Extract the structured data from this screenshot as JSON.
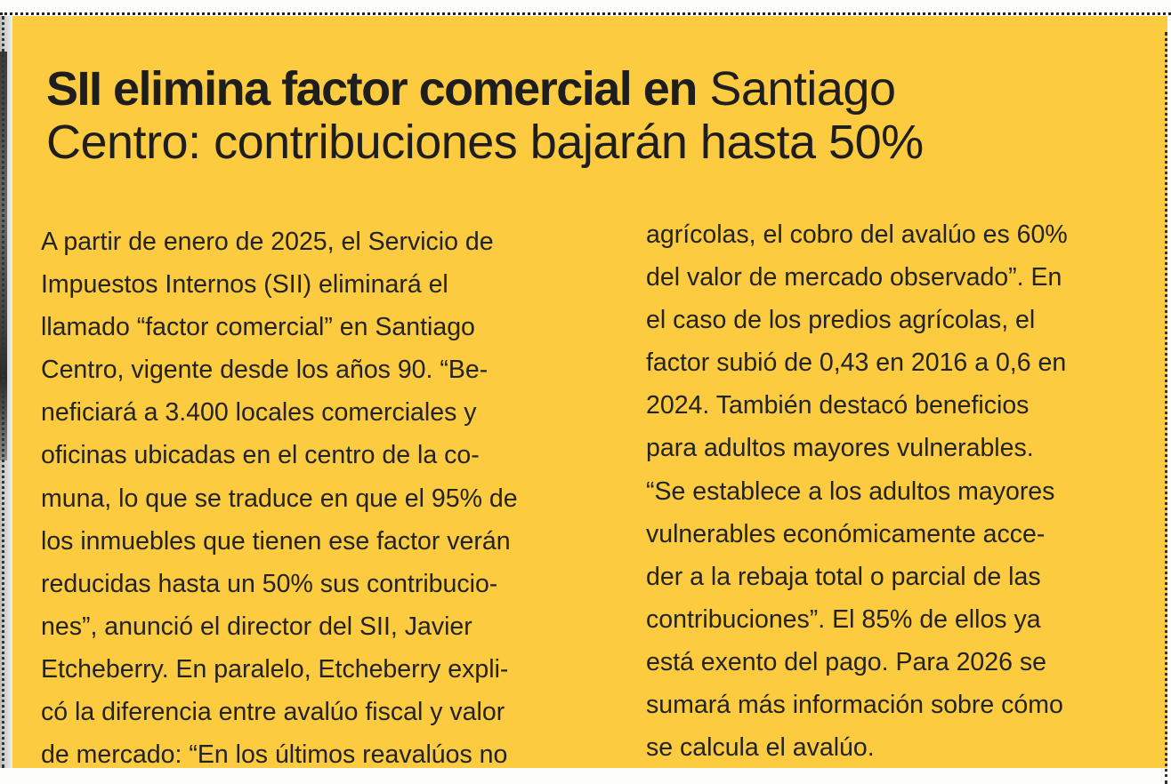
{
  "article": {
    "headline_bold": "SII elimina factor comercial en",
    "headline_rest_line1": " Santiago",
    "headline_line2": "Centro: contribuciones bajarán hasta 50%",
    "column_left_lines": [
      "A partir de enero de 2025, el Servicio de",
      "Impuestos Internos (SII) eliminará el",
      "llamado “factor comercial” en Santiago",
      "Centro, vigente desde los años 90. “Be-",
      "neficiará a 3.400 locales comerciales y",
      "oficinas ubicadas en el centro de la co-",
      "muna, lo que se traduce en que el 95% de",
      "los inmuebles que tienen ese factor verán",
      "reducidas hasta un 50% sus contribucio-",
      "nes”, anunció el director del SII, Javier",
      "Etcheberry. En paralelo, Etcheberry expli-",
      "có la diferencia entre avalúo fiscal y valor",
      "de mercado: “En los últimos reavalúos no"
    ],
    "column_right_lines": [
      "agrícolas, el cobro del avalúo es 60%",
      "del valor de mercado observado”. En",
      "el caso de los predios agrícolas, el",
      "factor subió de 0,43 en 2016 a 0,6 en",
      "2024. También destacó beneficios",
      "para adultos mayores vulnerables.",
      "“Se establece a los adultos mayores",
      "vulnerables económicamente acce-",
      "der a la rebaja total o parcial de las",
      "contribuciones”. El 85% de ellos ya",
      "está exento del pago. Para 2026 se",
      "sumará más información sobre cómo",
      "se calcula el avalúo."
    ]
  },
  "colors": {
    "background_box": "#fccb3f",
    "text": "#232323"
  }
}
